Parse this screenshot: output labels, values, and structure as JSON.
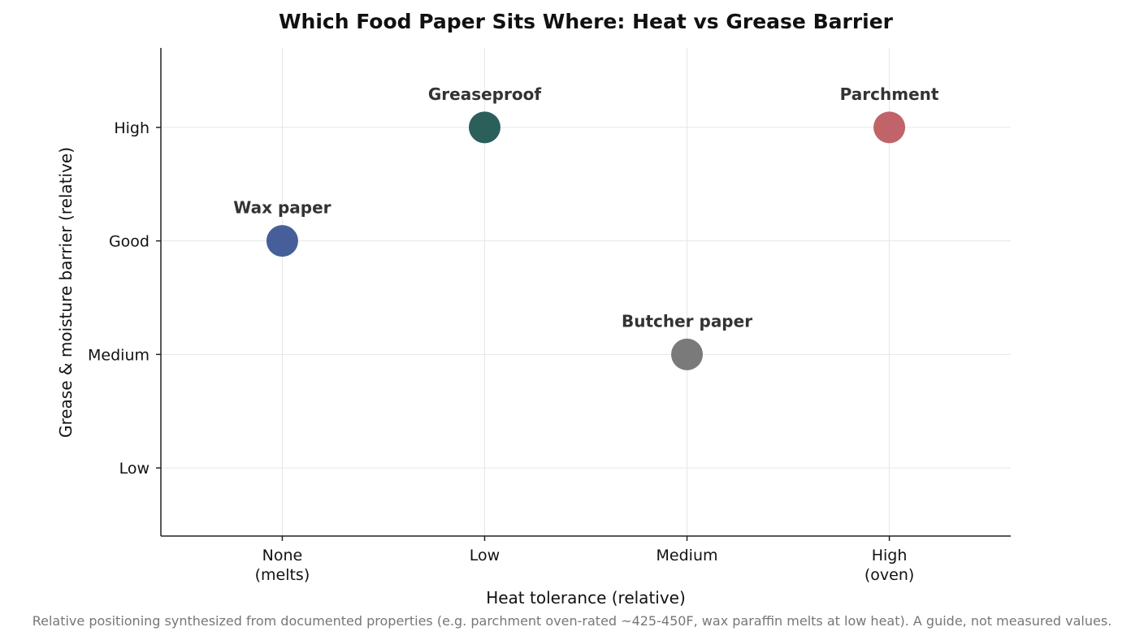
{
  "chart_data": {
    "type": "scatter",
    "title": "Which Food Paper Sits Where: Heat vs Grease Barrier",
    "xlabel": "Heat tolerance (relative)",
    "ylabel": "Grease & moisture barrier (relative)",
    "x_categories": [
      [
        "None",
        "(melts)"
      ],
      [
        "Low"
      ],
      [
        "Medium"
      ],
      [
        "High",
        "(oven)"
      ]
    ],
    "y_categories": [
      "Low",
      "Medium",
      "Good",
      "High"
    ],
    "xlim": [
      -0.6,
      3.6
    ],
    "ylim": [
      -0.6,
      3.7
    ],
    "grid": true,
    "points": [
      {
        "label": "Wax paper",
        "x": 0,
        "y": 2,
        "color": "#465f9b"
      },
      {
        "label": "Greaseproof",
        "x": 1,
        "y": 3,
        "color": "#2a5f5a"
      },
      {
        "label": "Butcher paper",
        "x": 2,
        "y": 1,
        "color": "#7a7a7a"
      },
      {
        "label": "Parchment",
        "x": 3,
        "y": 3,
        "color": "#c0646a"
      }
    ],
    "footnote": "Relative positioning synthesized from documented properties (e.g. parchment oven-rated ~425-450F, wax paraffin melts at low heat). A guide, not measured values."
  }
}
